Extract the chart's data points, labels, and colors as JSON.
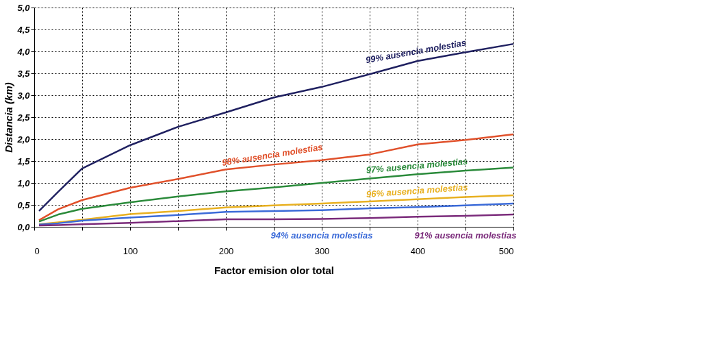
{
  "chart_data": {
    "type": "line",
    "xlabel": "Factor emision olor total",
    "ylabel": "Distancia (km)",
    "x": [
      5,
      25,
      50,
      100,
      150,
      200,
      250,
      300,
      350,
      400,
      450,
      500
    ],
    "series": [
      {
        "name": "99% ausencia molestias",
        "color": "#1f2060",
        "values": [
          0.36,
          0.8,
          1.33,
          1.86,
          2.28,
          2.61,
          2.95,
          3.19,
          3.48,
          3.78,
          3.98,
          4.17
        ]
      },
      {
        "name": "98% ausencia molestias",
        "color": "#e0502a",
        "values": [
          0.15,
          0.4,
          0.61,
          0.89,
          1.09,
          1.31,
          1.42,
          1.52,
          1.65,
          1.88,
          1.98,
          2.11
        ]
      },
      {
        "name": "97% ausencia molestias",
        "color": "#2a8a3a",
        "values": [
          0.12,
          0.28,
          0.41,
          0.56,
          0.69,
          0.81,
          0.9,
          1.0,
          1.1,
          1.2,
          1.28,
          1.35
        ]
      },
      {
        "name": "96% ausencia molestias",
        "color": "#e8b020",
        "values": [
          0.06,
          0.1,
          0.16,
          0.29,
          0.36,
          0.44,
          0.49,
          0.53,
          0.58,
          0.63,
          0.68,
          0.72
        ]
      },
      {
        "name": "94% ausencia molestias",
        "color": "#3a6ad8",
        "values": [
          0.05,
          0.08,
          0.14,
          0.21,
          0.27,
          0.34,
          0.36,
          0.38,
          0.42,
          0.45,
          0.49,
          0.53
        ]
      },
      {
        "name": "91% ausencia molestias",
        "color": "#7a2a7a",
        "values": [
          0.03,
          0.04,
          0.06,
          0.09,
          0.13,
          0.17,
          0.17,
          0.18,
          0.2,
          0.23,
          0.25,
          0.28
        ]
      }
    ],
    "xlim": [
      0,
      500
    ],
    "xticks": [
      0,
      {
        "value": 50,
        "label": null
      },
      100,
      {
        "value": 150,
        "label": null
      },
      200,
      {
        "value": 250,
        "label": null
      },
      300,
      {
        "value": 350,
        "label": null
      },
      400,
      {
        "value": 450,
        "label": null
      },
      500
    ],
    "ylim": [
      0,
      5
    ],
    "yticks": [
      {
        "value": 0,
        "label": "0,0"
      },
      {
        "value": 0.5,
        "label": "0,5"
      },
      {
        "value": 1,
        "label": "1,0"
      },
      {
        "value": 1.5,
        "label": "1,5"
      },
      {
        "value": 2,
        "label": "2,0"
      },
      {
        "value": 2.5,
        "label": "2,5"
      },
      {
        "value": 3,
        "label": "3,0"
      },
      {
        "value": 3.5,
        "label": "3,5"
      },
      {
        "value": 4,
        "label": "4,0"
      },
      {
        "value": 4.5,
        "label": "4,5"
      },
      {
        "value": 5,
        "label": "5,0"
      }
    ],
    "grid": true,
    "legend": false,
    "marker": "none",
    "line_style": "solid"
  }
}
